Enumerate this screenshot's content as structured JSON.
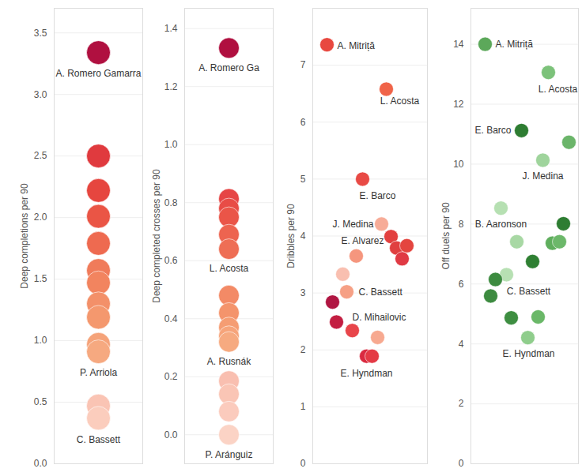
{
  "chart_data": [
    {
      "type": "strip",
      "y_label": "Deep completions per 90",
      "values": [
        3.34,
        2.5,
        2.22,
        2.01,
        1.79,
        1.57,
        1.47,
        1.3,
        1.19,
        0.97,
        0.91,
        0.47,
        0.37
      ],
      "labels": [
        "A. Romero Gamarra",
        null,
        null,
        null,
        null,
        null,
        null,
        null,
        null,
        null,
        "P. Arriola",
        null,
        "C. Bassett"
      ],
      "colors": [
        "#b01040",
        "#e03a3e",
        "#e6463f",
        "#ea5545",
        "#ee6a50",
        "#f07b5a",
        "#f2845f",
        "#f39069",
        "#f4986e",
        "#f5a37a",
        "#f6a980",
        "#fac4b4",
        "#fbcdbd"
      ],
      "ylim": [
        0,
        3.7
      ],
      "yticks": [
        {
          "value": 0,
          "label": "0.0"
        },
        0.5,
        {
          "value": 1,
          "label": "1.0"
        },
        1.5,
        {
          "value": 2,
          "label": "2.0"
        },
        2.5,
        {
          "value": 3,
          "label": "3.0"
        },
        3.5
      ],
      "grid": true,
      "tick_labels": "y"
    },
    {
      "type": "strip",
      "y_label": "Deep completed crosses per 90",
      "values": [
        1.333,
        0.813,
        0.78,
        0.75,
        0.69,
        0.64,
        0.48,
        0.42,
        0.37,
        0.34,
        0.32,
        0.185,
        0.14,
        0.08,
        0.0
      ],
      "labels": [
        "A. Romero Ga",
        null,
        null,
        null,
        null,
        "L. Acosta",
        null,
        null,
        null,
        null,
        "A. Rusnák",
        null,
        null,
        null,
        "P. Aránguiz"
      ],
      "colors": [
        "#b01040",
        "#e64545",
        "#e84c46",
        "#ea5548",
        "#ed6450",
        "#ee6e55",
        "#f38a66",
        "#f4946c",
        "#f59d73",
        "#f6a47a",
        "#f6aa80",
        "#f9bfb0",
        "#fac5b5",
        "#fbcbbd",
        "#fbd3c5"
      ],
      "ylim": [
        -0.1,
        1.47
      ],
      "yticks": [
        {
          "value": 0,
          "label": "0.0"
        },
        0.2,
        0.4,
        0.6,
        0.8,
        {
          "value": 1,
          "label": "1.0"
        },
        1.2,
        1.4
      ],
      "grid": true,
      "tick_labels": "y"
    },
    {
      "type": "scatter",
      "y_label": "Dribbles per 90",
      "x": [
        0.5,
        8.0,
        5.0,
        7.4,
        8.6,
        9.3,
        10.6,
        10.0,
        4.2,
        2.5,
        3.0,
        1.2,
        1.7,
        3.7,
        6.9,
        5.5,
        6.2
      ],
      "values": [
        7.36,
        6.58,
        5.0,
        4.21,
        3.99,
        3.79,
        3.83,
        3.6,
        3.65,
        3.33,
        3.02,
        2.84,
        2.49,
        2.34,
        2.22,
        1.89,
        1.89
      ],
      "labels": [
        "A. Mitriță",
        "L. Acosta",
        "E. Barco",
        "J. Medina",
        "E. Alvarez",
        null,
        null,
        null,
        null,
        null,
        "C. Bassett",
        null,
        "D. Mihailovic",
        null,
        null,
        "E. Hyndman",
        null
      ],
      "colors": [
        "#e8483f",
        "#f06449",
        "#e84a45",
        "#f7ac98",
        "#e2403f",
        "#e04040",
        "#e4453f",
        "#e03a44",
        "#f5967e",
        "#f9bfb0",
        "#f6a085",
        "#b01642",
        "#c31e42",
        "#e8454a",
        "#f7a990",
        "#da2a40",
        "#e43a45"
      ],
      "xlim": [
        -1.3,
        13.2
      ],
      "ylim": [
        0,
        8
      ],
      "yticks": [
        0,
        1,
        2,
        3,
        4,
        5,
        6,
        7
      ],
      "grid": true,
      "tick_labels": "y"
    },
    {
      "type": "scatter",
      "y_label": "Off duels per 90",
      "x": [
        0.7,
        8.7,
        5.3,
        11.3,
        8.0,
        2.7,
        10.6,
        4.7,
        9.2,
        10.1,
        6.7,
        3.4,
        2.0,
        1.4,
        4.0,
        7.4,
        6.1
      ],
      "values": [
        14.0,
        13.06,
        11.12,
        10.73,
        10.13,
        8.53,
        8.01,
        7.41,
        7.36,
        7.41,
        6.75,
        6.31,
        6.15,
        5.6,
        4.87,
        4.9,
        4.21
      ],
      "labels": [
        "A. Mitriță",
        "L. Acosta",
        "E. Barco",
        null,
        "J. Medina",
        "B. Aaronson",
        null,
        null,
        null,
        null,
        null,
        "C. Bassett",
        null,
        null,
        null,
        null,
        "E. Hyndman"
      ],
      "colors": [
        "#5ca85a",
        "#7cc27a",
        "#2e7d32",
        "#6bb56a",
        "#9fd49c",
        "#b6e0b2",
        "#2e7d32",
        "#a8d8a4",
        "#5fae5d",
        "#6cb86a",
        "#2f8033",
        "#b7e0b3",
        "#3d8b40",
        "#3d8b40",
        "#3e8e41",
        "#6ab868",
        "#8fcd8c"
      ],
      "xlim": [
        -1.1,
        12.5
      ],
      "ylim": [
        0,
        15.2
      ],
      "yticks": [
        0,
        2,
        4,
        6,
        8,
        10,
        12,
        14
      ],
      "grid": true,
      "tick_labels": "y"
    }
  ]
}
